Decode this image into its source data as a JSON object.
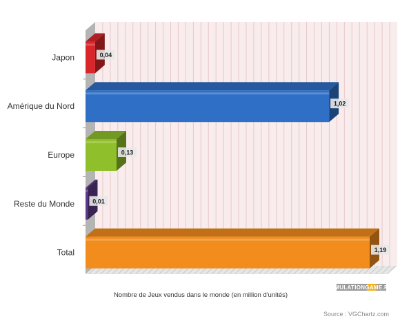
{
  "chart_data": {
    "type": "bar",
    "orientation": "horizontal",
    "style": "3d",
    "categories": [
      "Japon",
      "Amérique du Nord",
      "Europe",
      "Reste du Monde",
      "Total"
    ],
    "values": [
      0.04,
      1.02,
      0.13,
      0.01,
      1.19
    ],
    "value_labels": [
      "0,04",
      "1,02",
      "0,13",
      "0,01",
      "1,19"
    ],
    "colors": [
      "#d9262b",
      "#2f6fc6",
      "#8fbf2a",
      "#5e3a8a",
      "#f28c1c"
    ],
    "xlabel": "Nombre de Jeux vendus dans le monde (en million d'unités)",
    "ylabel": "",
    "xlim": [
      0,
      1.2
    ],
    "grid": true,
    "legend": "none"
  },
  "watermark": "EMULATIONGAME.FR",
  "source_text": "Source : VGChartz.com"
}
